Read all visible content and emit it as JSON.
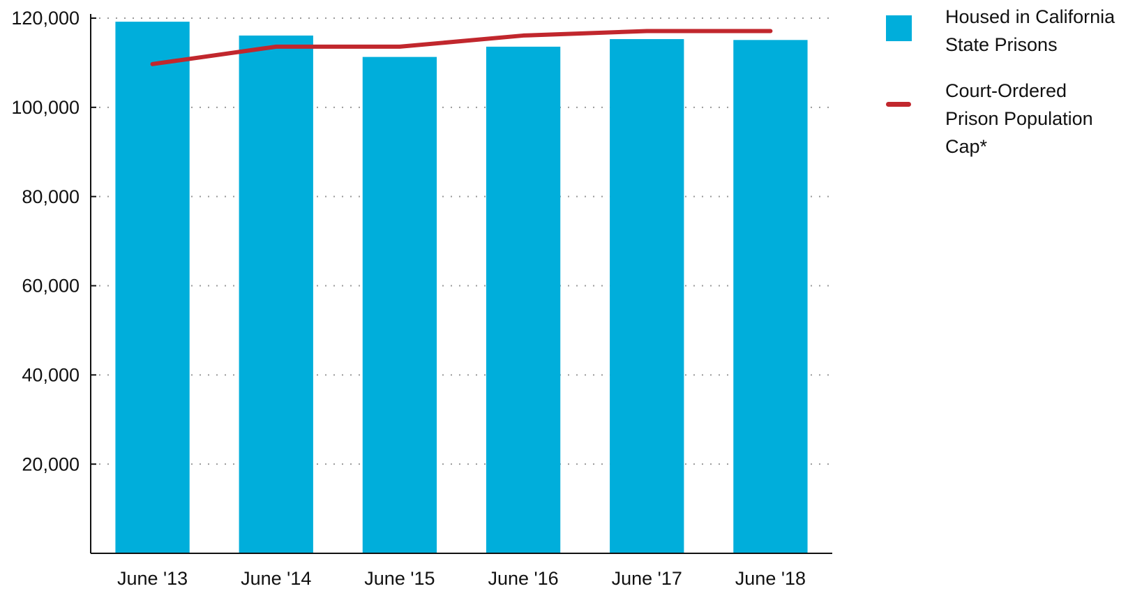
{
  "chart_data": {
    "type": "bar",
    "categories": [
      "June '13",
      "June '14",
      "June '15",
      "June '16",
      "June '17",
      "June '18"
    ],
    "series": [
      {
        "name": "Housed in California State Prisons",
        "color": "#00aedb",
        "type": "bar",
        "values": [
          119200,
          116100,
          111300,
          113600,
          115300,
          115100
        ]
      },
      {
        "name": "Court-Ordered Prison Population Cap*",
        "color": "#c1272d",
        "type": "line",
        "values": [
          109700,
          113600,
          113600,
          116100,
          117100,
          117100
        ]
      }
    ],
    "ylim": [
      0,
      120000
    ],
    "yticks": [
      {
        "value": 20000,
        "label": "20,000"
      },
      {
        "value": 40000,
        "label": "40,000"
      },
      {
        "value": 60000,
        "label": "60,000"
      },
      {
        "value": 80000,
        "label": "80,000"
      },
      {
        "value": 100000,
        "label": "100,000"
      },
      {
        "value": 120000,
        "label": "120,000"
      }
    ],
    "grid": true,
    "legend": "top-right"
  }
}
